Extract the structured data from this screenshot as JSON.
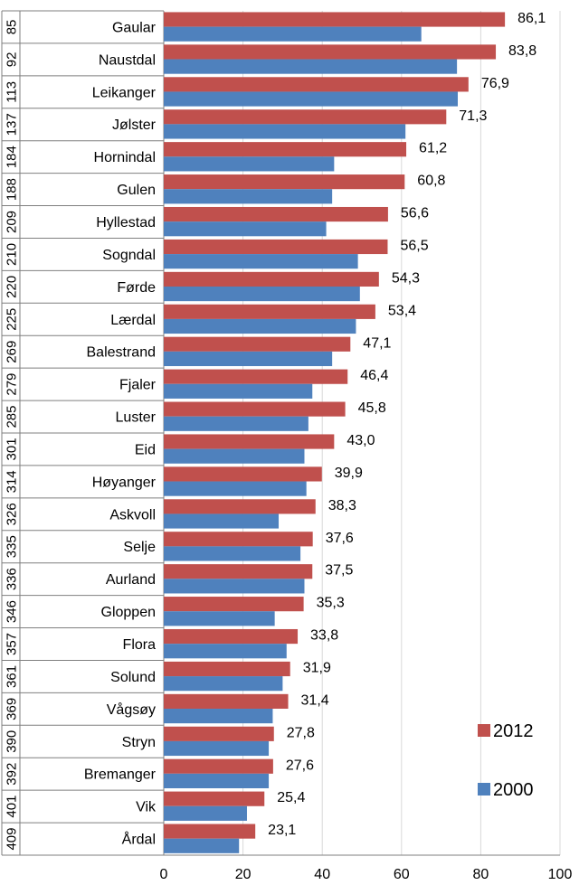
{
  "chart_data": {
    "type": "bar",
    "orientation": "horizontal",
    "ranks": [
      "85",
      "92",
      "113",
      "137",
      "184",
      "188",
      "209",
      "210",
      "220",
      "225",
      "269",
      "279",
      "285",
      "301",
      "314",
      "326",
      "335",
      "336",
      "346",
      "357",
      "361",
      "369",
      "390",
      "392",
      "401",
      "409"
    ],
    "categories": [
      "Gaular",
      "Naustdal",
      "Leikanger",
      "Jølster",
      "Hornindal",
      "Gulen",
      "Hyllestad",
      "Sogndal",
      "Førde",
      "Lærdal",
      "Balestrand",
      "Fjaler",
      "Luster",
      "Eid",
      "Høyanger",
      "Askvoll",
      "Selje",
      "Aurland",
      "Gloppen",
      "Flora",
      "Solund",
      "Vågsøy",
      "Stryn",
      "Bremanger",
      "Vik",
      "Årdal"
    ],
    "series": [
      {
        "name": "2012",
        "color": "#C0504D",
        "values": [
          86.1,
          83.8,
          76.9,
          71.3,
          61.2,
          60.8,
          56.6,
          56.5,
          54.3,
          53.4,
          47.1,
          46.4,
          45.8,
          43.0,
          39.9,
          38.3,
          37.6,
          37.5,
          35.3,
          33.8,
          31.9,
          31.4,
          27.8,
          27.6,
          25.4,
          23.1
        ],
        "labels": [
          "86,1",
          "83,8",
          "76,9",
          "71,3",
          "61,2",
          "60,8",
          "56,6",
          "56,5",
          "54,3",
          "53,4",
          "47,1",
          "46,4",
          "45,8",
          "43,0",
          "39,9",
          "38,3",
          "37,6",
          "37,5",
          "35,3",
          "33,8",
          "31,9",
          "31,4",
          "27,8",
          "27,6",
          "25,4",
          "23,1"
        ]
      },
      {
        "name": "2000",
        "color": "#4F81BD",
        "values": [
          65.0,
          74.0,
          74.2,
          61.0,
          43.0,
          42.5,
          41.0,
          49.0,
          49.5,
          48.5,
          42.5,
          37.5,
          36.5,
          35.5,
          36.0,
          29.0,
          34.5,
          35.5,
          28.0,
          31.0,
          30.0,
          27.5,
          26.5,
          26.5,
          21.0,
          19.0
        ]
      }
    ],
    "xlim": [
      0,
      100
    ],
    "xticks": [
      "0",
      "20",
      "40",
      "60",
      "80",
      "100"
    ],
    "xtick_values": [
      0,
      20,
      40,
      60,
      80,
      100
    ],
    "legend": "right",
    "grid": true
  }
}
